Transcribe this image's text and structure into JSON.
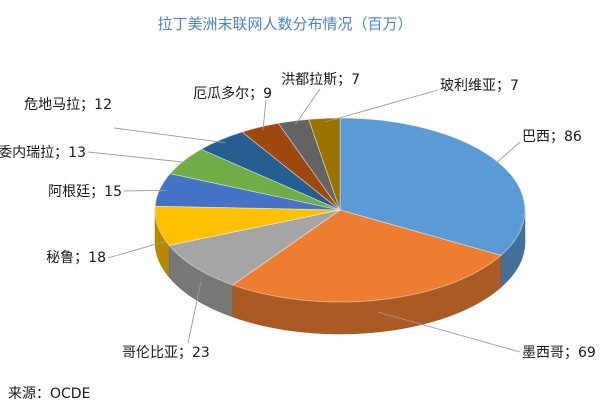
{
  "chart_data": {
    "type": "pie",
    "title": "拉丁美洲末联网人数分布情况（百万）",
    "categories": [
      "巴西",
      "墨西哥",
      "哥伦比亚",
      "秘鲁",
      "阿根廷",
      "委内瑞拉",
      "危地马拉",
      "厄瓜多尔",
      "洪都拉斯",
      "玻利维亚"
    ],
    "values": [
      86,
      69,
      23,
      18,
      15,
      13,
      12,
      9,
      7,
      7
    ],
    "labels": [
      "巴西；86",
      "墨西哥；69",
      "哥伦比亚；23",
      "秘鲁；18",
      "阿根廷；15",
      "委内瑞拉；13",
      "危地马拉；12",
      "厄瓜多尔；9",
      "洪都拉斯；7",
      "玻利维亚；7"
    ],
    "colors": [
      "#5b9bd5",
      "#ed7d31",
      "#a5a5a5",
      "#ffc000",
      "#4472c4",
      "#70ad47",
      "#255e91",
      "#9e480e",
      "#636363",
      "#997300"
    ],
    "legend": "none",
    "style": "3d"
  },
  "source": "来源：OCDE"
}
